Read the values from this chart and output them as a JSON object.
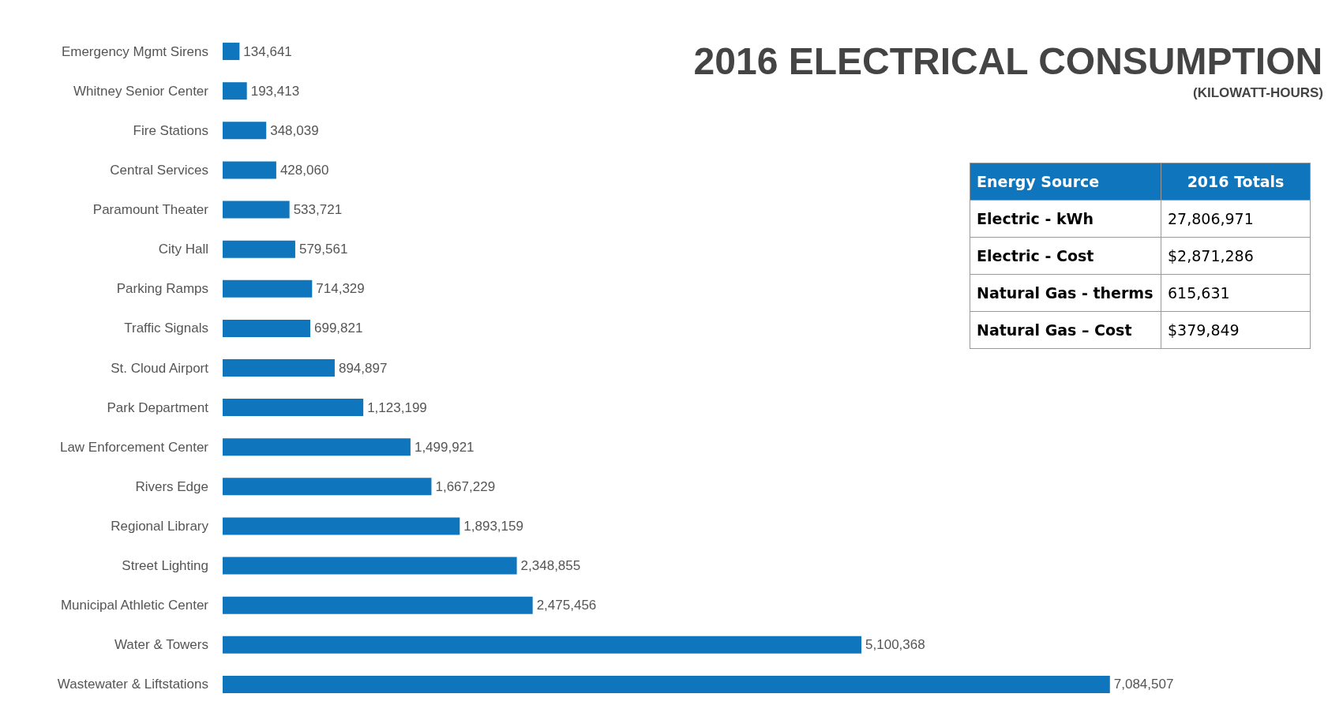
{
  "chart_data": [
    {
      "type": "bar",
      "orientation": "horizontal",
      "title": "2016 ELECTRICAL CONSUMPTION",
      "subtitle": "(KILOWATT-HOURS)",
      "color": "#0f75bd",
      "grid": false,
      "categories": [
        "Emergency Mgmt Sirens",
        "Whitney Senior Center",
        "Fire Stations",
        "Central Services",
        "Paramount Theater",
        "City Hall",
        "Parking Ramps",
        "Traffic Signals",
        "St. Cloud Airport",
        "Park Department",
        "Law Enforcement Center",
        "Rivers Edge",
        "Regional Library",
        "Street Lighting",
        "Municipal Athletic Center",
        "Water & Towers",
        "Wastewater & Liftstations"
      ],
      "values": [
        134641,
        193413,
        348039,
        428060,
        533721,
        579561,
        714329,
        699821,
        894897,
        1123199,
        1499921,
        1667229,
        1893159,
        2348855,
        2475456,
        5100368,
        7084507
      ],
      "value_labels": [
        "134,641",
        "193,413",
        "348,039",
        "428,060",
        "533,721",
        "579,561",
        "714,329",
        "699,821",
        "894,897",
        "1,123,199",
        "1,499,921",
        "1,667,229",
        "1,893,159",
        "2,348,855",
        "2,475,456",
        "5,100,368",
        "7,084,507"
      ],
      "annotations": [
        "Energy Source",
        "2016 Totals",
        "Electric - kWh",
        "27,806,971",
        "Electric - Cost",
        "$2,871,286",
        "Natural Gas - therms",
        "615,631",
        "Natural Gas – Cost",
        "$379,849"
      ]
    }
  ]
}
